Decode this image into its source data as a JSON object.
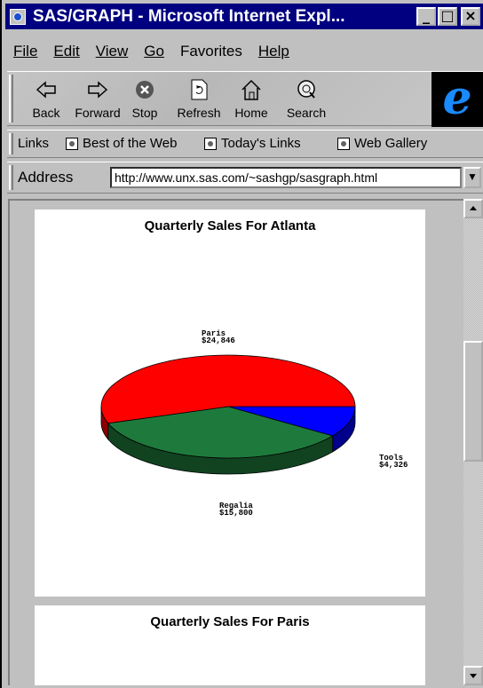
{
  "window": {
    "title": "SAS/GRAPH - Microsoft Internet Expl...",
    "buttons": {
      "minimize": "_",
      "maximize": "□",
      "close": "×"
    }
  },
  "menu": [
    "File",
    "Edit",
    "View",
    "Go",
    "Favorites",
    "Help"
  ],
  "toolbar": {
    "buttons": [
      {
        "label": "Back",
        "icon": "back-arrow-icon"
      },
      {
        "label": "Forward",
        "icon": "forward-arrow-icon"
      },
      {
        "label": "Stop",
        "icon": "stop-icon"
      },
      {
        "label": "Refresh",
        "icon": "refresh-icon"
      },
      {
        "label": "Home",
        "icon": "home-icon"
      },
      {
        "label": "Search",
        "icon": "search-icon"
      }
    ],
    "logo": "e"
  },
  "links": {
    "label": "Links",
    "items": [
      "Best of the Web",
      "Today's Links",
      "Web Gallery"
    ]
  },
  "address": {
    "label": "Address",
    "url": "http://www.unx.sas.com/~sashgp/sasgraph.html"
  },
  "page": {
    "chart1_title": "Quarterly Sales For Atlanta",
    "chart2_title": "Quarterly Sales For Paris"
  },
  "chart_data": [
    {
      "type": "pie",
      "title": "Quarterly Sales For Atlanta",
      "slices": [
        {
          "label": "Paris",
          "value_label": "$24,846",
          "value": 24846,
          "color": "#ff0000"
        },
        {
          "label": "Regalia",
          "value_label": "$15,800",
          "value": 15800,
          "color": "#1e7a3c"
        },
        {
          "label": "Tools",
          "value_label": "$4,326",
          "value": 4326,
          "color": "#0000ff"
        }
      ]
    },
    {
      "type": "pie",
      "title": "Quarterly Sales For Paris",
      "slices": []
    }
  ]
}
